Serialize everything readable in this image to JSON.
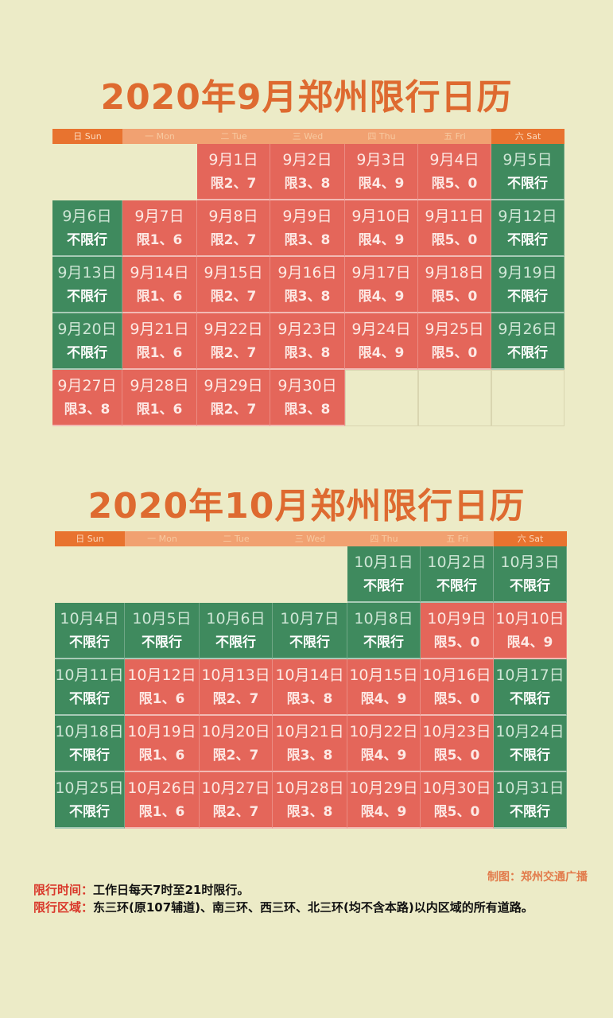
{
  "colors": {
    "restricted": "#e4665a",
    "unrestricted": "#3f8a5e",
    "title": "#de6a30",
    "header_weekend": "#e8732f",
    "header_weekday": "#f1a171"
  },
  "headers": [
    "日 Sun",
    "一 Mon",
    "二 Tue",
    "三 Wed",
    "四 Thu",
    "五 Fri",
    "六 Sat"
  ],
  "calendars": [
    {
      "title": "2020年9月郑州限行日历",
      "weeks": [
        [
          null,
          null,
          {
            "day": "9月1日",
            "rule": "限2、7",
            "status": "red"
          },
          {
            "day": "9月2日",
            "rule": "限3、8",
            "status": "red"
          },
          {
            "day": "9月3日",
            "rule": "限4、9",
            "status": "red"
          },
          {
            "day": "9月4日",
            "rule": "限5、0",
            "status": "red"
          },
          {
            "day": "9月5日",
            "rule": "不限行",
            "status": "green"
          }
        ],
        [
          {
            "day": "9月6日",
            "rule": "不限行",
            "status": "green"
          },
          {
            "day": "9月7日",
            "rule": "限1、6",
            "status": "red"
          },
          {
            "day": "9月8日",
            "rule": "限2、7",
            "status": "red"
          },
          {
            "day": "9月9日",
            "rule": "限3、8",
            "status": "red"
          },
          {
            "day": "9月10日",
            "rule": "限4、9",
            "status": "red"
          },
          {
            "day": "9月11日",
            "rule": "限5、0",
            "status": "red"
          },
          {
            "day": "9月12日",
            "rule": "不限行",
            "status": "green"
          }
        ],
        [
          {
            "day": "9月13日",
            "rule": "不限行",
            "status": "green"
          },
          {
            "day": "9月14日",
            "rule": "限1、6",
            "status": "red"
          },
          {
            "day": "9月15日",
            "rule": "限2、7",
            "status": "red"
          },
          {
            "day": "9月16日",
            "rule": "限3、8",
            "status": "red"
          },
          {
            "day": "9月17日",
            "rule": "限4、9",
            "status": "red"
          },
          {
            "day": "9月18日",
            "rule": "限5、0",
            "status": "red"
          },
          {
            "day": "9月19日",
            "rule": "不限行",
            "status": "green"
          }
        ],
        [
          {
            "day": "9月20日",
            "rule": "不限行",
            "status": "green"
          },
          {
            "day": "9月21日",
            "rule": "限1、6",
            "status": "red"
          },
          {
            "day": "9月22日",
            "rule": "限2、7",
            "status": "red"
          },
          {
            "day": "9月23日",
            "rule": "限3、8",
            "status": "red"
          },
          {
            "day": "9月24日",
            "rule": "限4、9",
            "status": "red"
          },
          {
            "day": "9月25日",
            "rule": "限5、0",
            "status": "red"
          },
          {
            "day": "9月26日",
            "rule": "不限行",
            "status": "green"
          }
        ],
        [
          {
            "day": "9月27日",
            "rule": "限3、8",
            "status": "red"
          },
          {
            "day": "9月28日",
            "rule": "限1、6",
            "status": "red"
          },
          {
            "day": "9月29日",
            "rule": "限2、7",
            "status": "red"
          },
          {
            "day": "9月30日",
            "rule": "限3、8",
            "status": "red"
          },
          "empty",
          "empty",
          "empty"
        ]
      ]
    },
    {
      "title": "2020年10月郑州限行日历",
      "weeks": [
        [
          null,
          null,
          null,
          null,
          {
            "day": "10月1日",
            "rule": "不限行",
            "status": "green"
          },
          {
            "day": "10月2日",
            "rule": "不限行",
            "status": "green"
          },
          {
            "day": "10月3日",
            "rule": "不限行",
            "status": "green"
          }
        ],
        [
          {
            "day": "10月4日",
            "rule": "不限行",
            "status": "green"
          },
          {
            "day": "10月5日",
            "rule": "不限行",
            "status": "green"
          },
          {
            "day": "10月6日",
            "rule": "不限行",
            "status": "green"
          },
          {
            "day": "10月7日",
            "rule": "不限行",
            "status": "green"
          },
          {
            "day": "10月8日",
            "rule": "不限行",
            "status": "green"
          },
          {
            "day": "10月9日",
            "rule": "限5、0",
            "status": "red"
          },
          {
            "day": "10月10日",
            "rule": "限4、9",
            "status": "red"
          }
        ],
        [
          {
            "day": "10月11日",
            "rule": "不限行",
            "status": "green"
          },
          {
            "day": "10月12日",
            "rule": "限1、6",
            "status": "red"
          },
          {
            "day": "10月13日",
            "rule": "限2、7",
            "status": "red"
          },
          {
            "day": "10月14日",
            "rule": "限3、8",
            "status": "red"
          },
          {
            "day": "10月15日",
            "rule": "限4、9",
            "status": "red"
          },
          {
            "day": "10月16日",
            "rule": "限5、0",
            "status": "red"
          },
          {
            "day": "10月17日",
            "rule": "不限行",
            "status": "green"
          }
        ],
        [
          {
            "day": "10月18日",
            "rule": "不限行",
            "status": "green"
          },
          {
            "day": "10月19日",
            "rule": "限1、6",
            "status": "red"
          },
          {
            "day": "10月20日",
            "rule": "限2、7",
            "status": "red"
          },
          {
            "day": "10月21日",
            "rule": "限3、8",
            "status": "red"
          },
          {
            "day": "10月22日",
            "rule": "限4、9",
            "status": "red"
          },
          {
            "day": "10月23日",
            "rule": "限5、0",
            "status": "red"
          },
          {
            "day": "10月24日",
            "rule": "不限行",
            "status": "green"
          }
        ],
        [
          {
            "day": "10月25日",
            "rule": "不限行",
            "status": "green"
          },
          {
            "day": "10月26日",
            "rule": "限1、6",
            "status": "red"
          },
          {
            "day": "10月27日",
            "rule": "限2、7",
            "status": "red"
          },
          {
            "day": "10月28日",
            "rule": "限3、8",
            "status": "red"
          },
          {
            "day": "10月29日",
            "rule": "限4、9",
            "status": "red"
          },
          {
            "day": "10月30日",
            "rule": "限5、0",
            "status": "red"
          },
          {
            "day": "10月31日",
            "rule": "不限行",
            "status": "green"
          }
        ]
      ]
    }
  ],
  "credit": "制图：郑州交通广播",
  "notes": [
    {
      "label": "限行时间：",
      "text": "工作日每天7时至21时限行。"
    },
    {
      "label": "限行区域：",
      "text": "东三环(原107辅道)、南三环、西三环、北三环(均不含本路)以内区域的所有道路。"
    }
  ]
}
